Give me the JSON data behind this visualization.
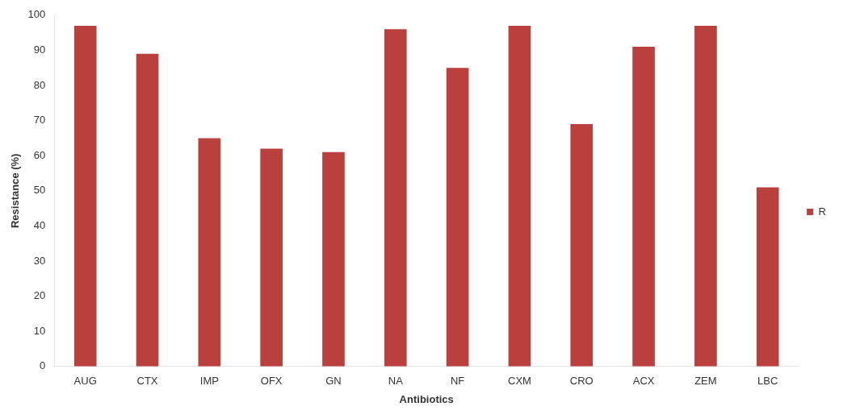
{
  "chart_data": {
    "type": "bar",
    "xlabel": "Antibiotics",
    "ylabel": "Resistance (%)",
    "categories": [
      "AUG",
      "CTX",
      "IMP",
      "OFX",
      "GN",
      "NA",
      "NF",
      "CXM",
      "CRO",
      "ACX",
      "ZEM",
      "LBC"
    ],
    "series": [
      {
        "name": "R",
        "color": "#b9403d",
        "values": [
          97,
          89,
          65,
          62,
          61,
          96,
          85,
          97,
          69,
          91,
          97,
          51
        ]
      }
    ],
    "ylim": [
      0,
      100
    ],
    "yticks": [
      0,
      10,
      20,
      30,
      40,
      50,
      60,
      70,
      80,
      90,
      100
    ],
    "grid": false,
    "legend": "right"
  }
}
